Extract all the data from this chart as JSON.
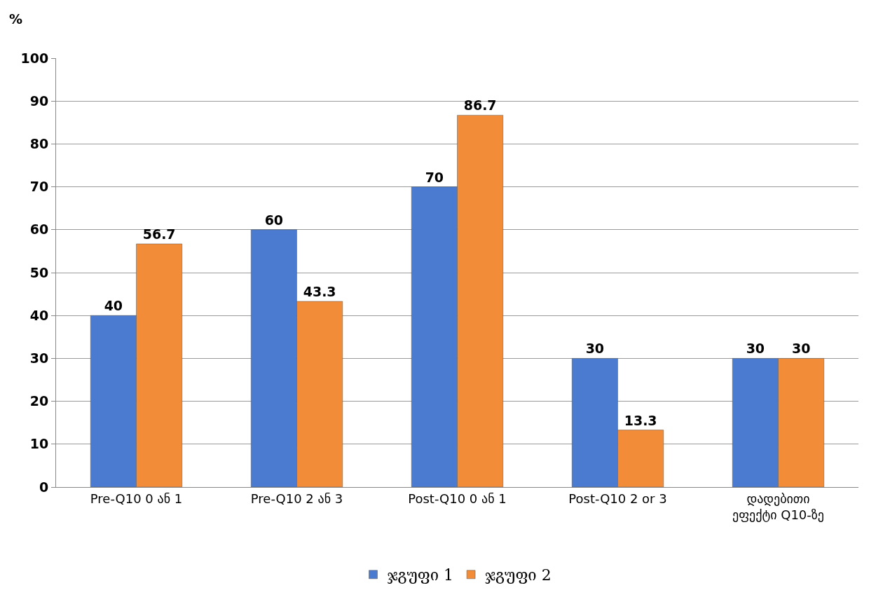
{
  "chart_data": {
    "type": "bar",
    "ylabel": "%",
    "categories": [
      "Pre-Q10 0 ან 1",
      "Pre-Q10 2 ან 3",
      "Post-Q10 0 ან 1",
      "Post-Q10 2 or 3",
      "დადებითი ეფექტი Q10-ზე"
    ],
    "series": [
      {
        "name": "ჯგუფი 1",
        "color": "#4a7bd0",
        "values": [
          40,
          60,
          70,
          30,
          30
        ]
      },
      {
        "name": "ჯგუფი 2",
        "color": "#f28c38",
        "values": [
          56.7,
          43.3,
          86.7,
          13.3,
          30
        ]
      }
    ],
    "ylim": [
      0,
      100
    ],
    "yticks": [
      0,
      10,
      20,
      30,
      40,
      50,
      60,
      70,
      80,
      90,
      100
    ],
    "grid": "y",
    "legend": "bottom",
    "data_labels": true
  }
}
